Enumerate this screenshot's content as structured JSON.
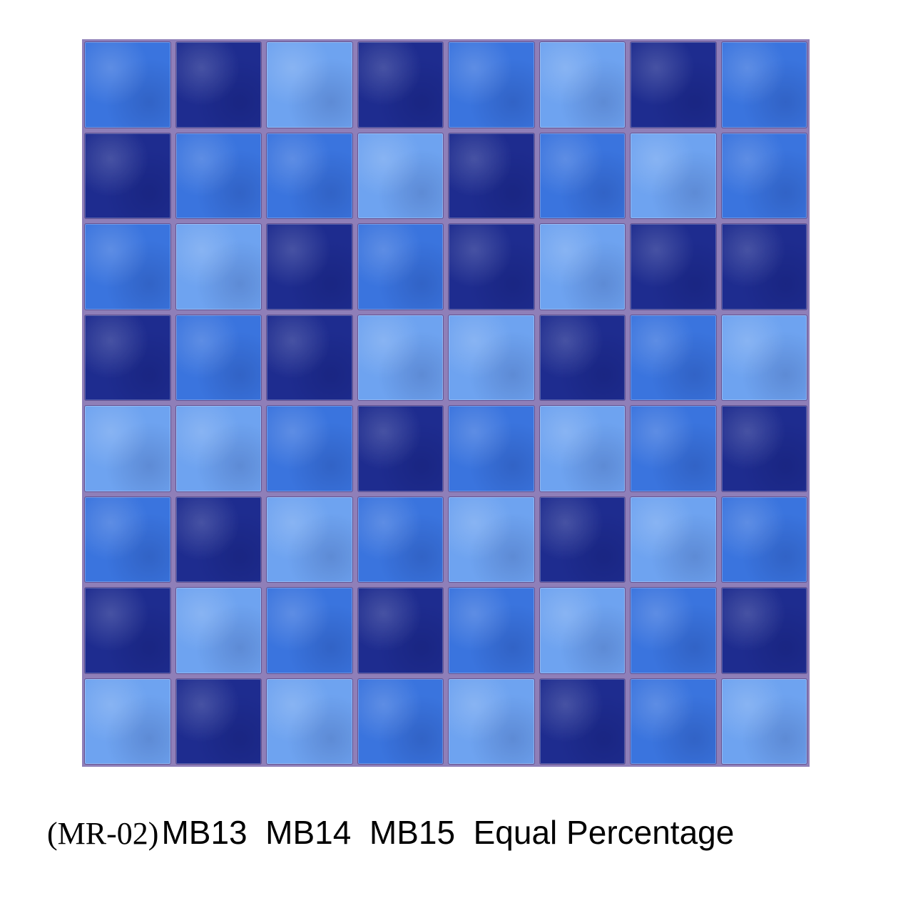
{
  "product": {
    "code": "(MR-02)",
    "description": "MB13  MB14  MB15  Equal Percentage"
  },
  "colors": {
    "D": "#1e2c8f",
    "M": "#3a74de",
    "L": "#6ea3f0",
    "grout": "#8f7fb8"
  },
  "tiles": [
    "MDLDMLDM",
    "DMMLDMLM",
    "MLDMDLDD",
    "DMDLLDML",
    "LLMDMLMD",
    "MDLMLDLM",
    "DLMDMLMD",
    "LDLMLDML"
  ]
}
